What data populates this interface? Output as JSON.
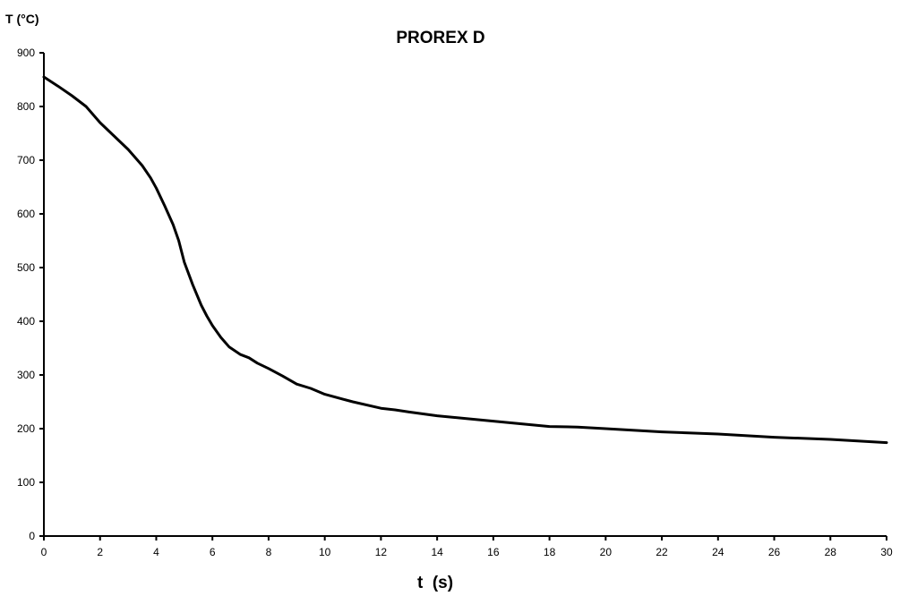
{
  "chart_data": {
    "type": "line",
    "title": "PROREX D",
    "xlabel": "t  (s)",
    "ylabel": "T (°C)",
    "xlim": [
      0,
      30
    ],
    "ylim": [
      0,
      900
    ],
    "grid": false,
    "legend": "none",
    "line_color": "#000000",
    "x_ticks": [
      "0",
      "2",
      "4",
      "6",
      "8",
      "10",
      "12",
      "14",
      "16",
      "18",
      "20",
      "22",
      "24",
      "26",
      "28",
      "30"
    ],
    "y_ticks": [
      "0",
      "100",
      "200",
      "300",
      "400",
      "500",
      "600",
      "700",
      "800",
      "900"
    ],
    "series": [
      {
        "x": [
          0,
          0.5,
          1.0,
          1.5,
          2.0,
          2.5,
          3.0,
          3.5,
          3.8,
          4.0,
          4.3,
          4.6,
          4.8,
          5.0,
          5.3,
          5.6,
          5.8,
          6.0,
          6.3,
          6.6,
          7.0,
          7.3,
          7.6,
          8.0,
          8.5,
          9.0,
          9.5,
          10.0,
          11.0,
          12.0,
          12.5,
          13.0,
          14.0,
          15.0,
          16.0,
          17.0,
          18.0,
          19.0,
          20.0,
          22.0,
          24.0,
          26.0,
          28.0,
          30.0
        ],
        "y": [
          855,
          838,
          820,
          800,
          770,
          745,
          720,
          690,
          667,
          648,
          615,
          580,
          550,
          510,
          468,
          430,
          410,
          392,
          370,
          352,
          338,
          332,
          322,
          312,
          298,
          283,
          275,
          264,
          250,
          238,
          235,
          231,
          224,
          219,
          214,
          209,
          204,
          203,
          200,
          194,
          190,
          184,
          180,
          174
        ]
      }
    ]
  }
}
